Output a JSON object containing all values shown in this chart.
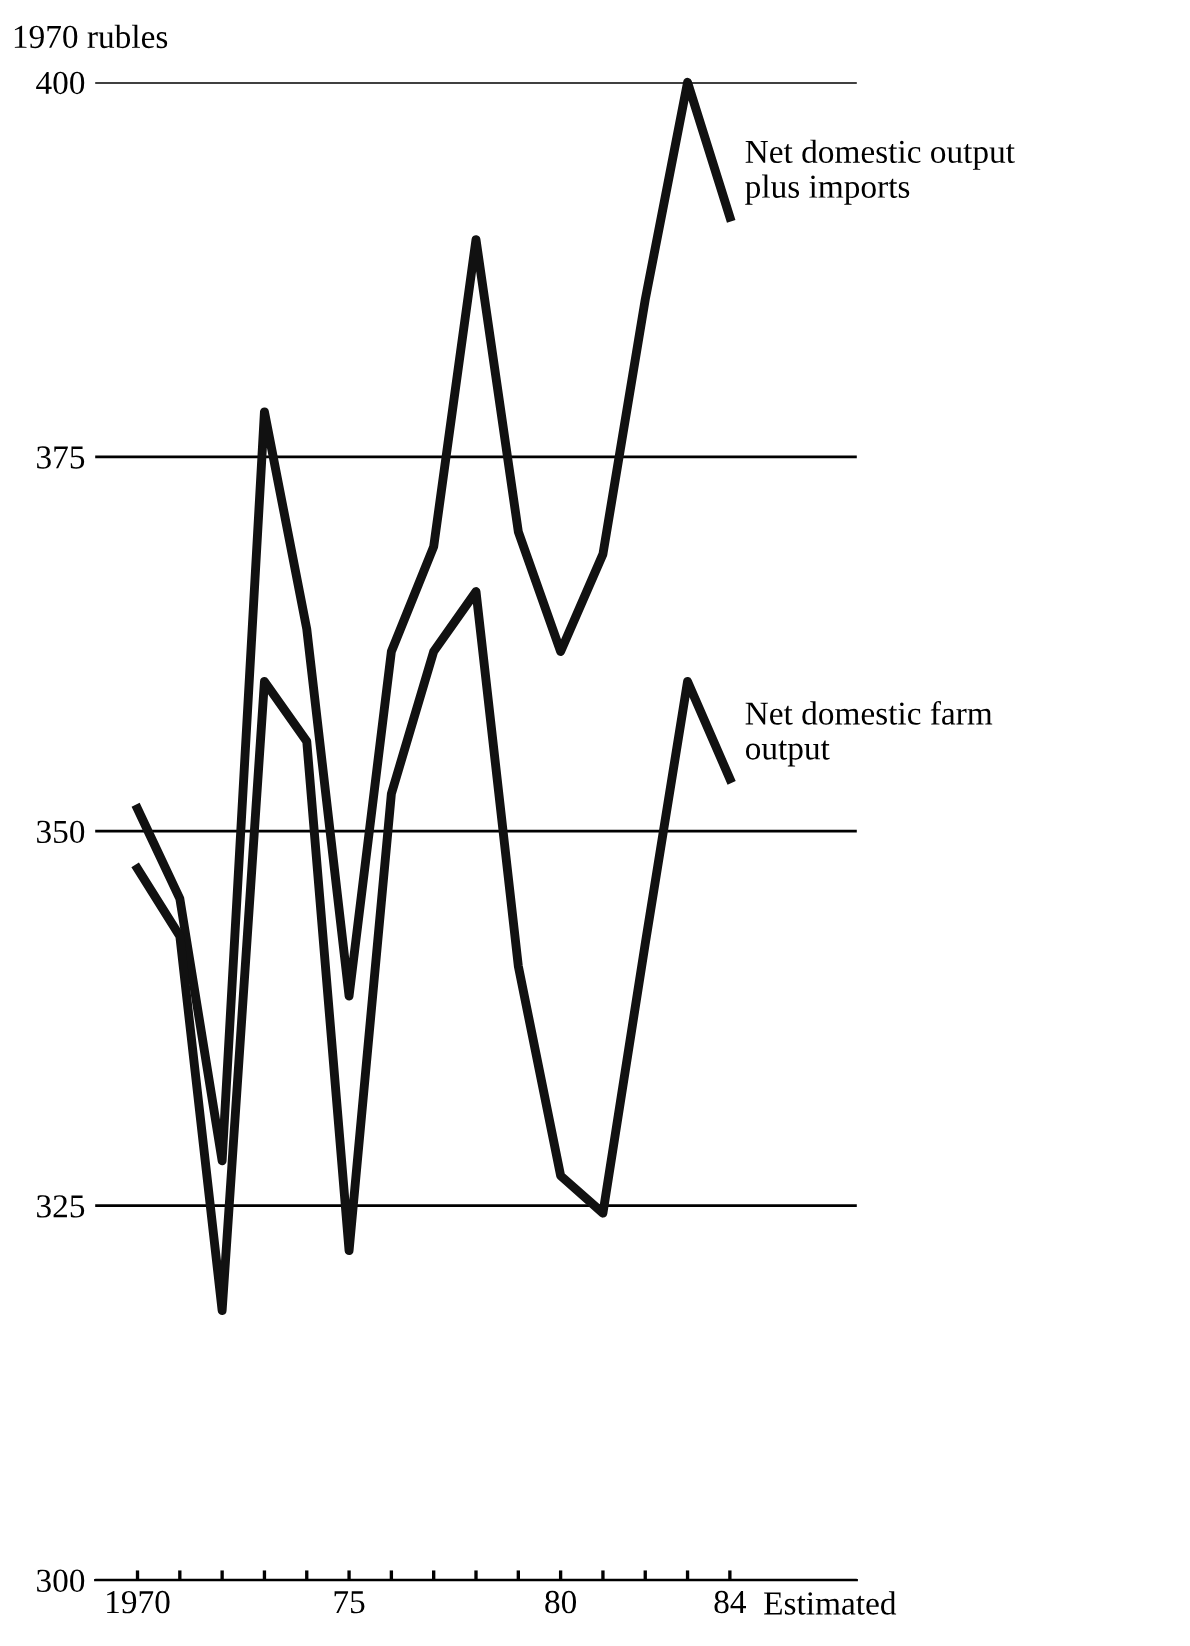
{
  "chart_data": {
    "type": "line",
    "ylabel": "1970 rubles",
    "x": [
      1970,
      1971,
      1972,
      1973,
      1974,
      1975,
      1976,
      1977,
      1978,
      1979,
      1980,
      1981,
      1982,
      1983,
      1984
    ],
    "series": [
      {
        "name": "Net domestic output plus imports",
        "color": "#111111",
        "values": [
          351.5,
          345.5,
          328,
          378,
          363.5,
          339,
          362,
          369,
          389.5,
          370,
          362,
          368.5,
          385.5,
          400,
          391
        ]
      },
      {
        "name": "Net domestic farm output",
        "color": "#111111",
        "values": [
          347.5,
          343,
          318,
          360,
          356,
          322,
          352.5,
          362,
          366,
          341,
          327,
          324.5,
          342.5,
          360,
          353.5
        ]
      }
    ],
    "xlim": [
      1969,
      1987
    ],
    "ylim": [
      300,
      400
    ],
    "xticks": [
      {
        "value": 1970,
        "label": "1970"
      },
      {
        "value": 1971,
        "label": null
      },
      {
        "value": 1972,
        "label": null
      },
      {
        "value": 1973,
        "label": null
      },
      {
        "value": 1974,
        "label": null
      },
      {
        "value": 1975,
        "label": "75"
      },
      {
        "value": 1976,
        "label": null
      },
      {
        "value": 1977,
        "label": null
      },
      {
        "value": 1978,
        "label": null
      },
      {
        "value": 1979,
        "label": null
      },
      {
        "value": 1980,
        "label": "80"
      },
      {
        "value": 1981,
        "label": null
      },
      {
        "value": 1982,
        "label": null
      },
      {
        "value": 1983,
        "label": null
      },
      {
        "value": 1984,
        "label": "84"
      }
    ],
    "annotations": [
      "Estimated"
    ],
    "yticks": [
      300,
      325,
      350,
      375,
      400
    ],
    "grid": "y",
    "legend": false,
    "marker": "none",
    "line_style": "solid"
  }
}
